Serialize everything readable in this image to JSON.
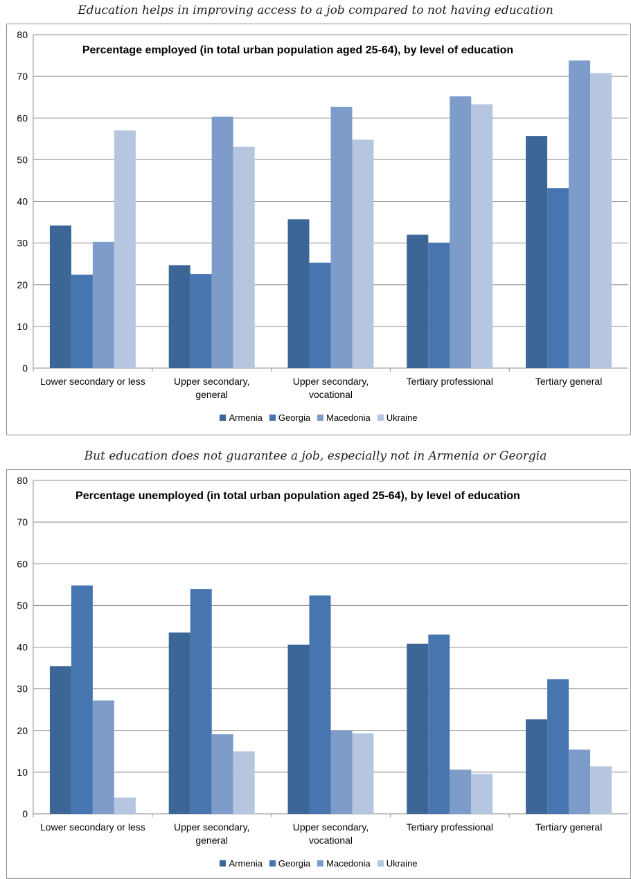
{
  "captions": {
    "top": "Education helps in improving access to a job compared to not having education",
    "bottom": "But education does not guarantee a job, especially not in Armenia or Georgia"
  },
  "chart_data": [
    {
      "type": "bar",
      "title": "Percentage employed (in total urban population aged 25-64), by level of education",
      "categories": [
        "Lower secondary or less",
        "Upper secondary, general",
        "Upper secondary, vocational",
        "Tertiary professional",
        "Tertiary general"
      ],
      "series": [
        {
          "name": "Armenia",
          "color": "#3c6696",
          "values": [
            34.2,
            24.7,
            35.7,
            32.0,
            55.7
          ]
        },
        {
          "name": "Georgia",
          "color": "#4675b0",
          "values": [
            22.4,
            22.6,
            25.3,
            30.1,
            43.2
          ]
        },
        {
          "name": "Macedonia",
          "color": "#7e9cc9",
          "values": [
            30.3,
            60.3,
            62.7,
            65.2,
            73.8
          ]
        },
        {
          "name": "Ukraine",
          "color": "#b6c5e0",
          "values": [
            57.0,
            53.1,
            54.8,
            63.3,
            70.8
          ]
        }
      ],
      "ylim": [
        0,
        80
      ],
      "yticks": [
        0,
        10,
        20,
        30,
        40,
        50,
        60,
        70,
        80
      ],
      "grid": true,
      "legend_position": "bottom"
    },
    {
      "type": "bar",
      "title": "Percentage unemployed (in total urban population aged 25-64), by level of education",
      "categories": [
        "Lower secondary or less",
        "Upper secondary, general",
        "Upper secondary, vocational",
        "Tertiary professional",
        "Tertiary general"
      ],
      "series": [
        {
          "name": "Armenia",
          "color": "#3c6696",
          "values": [
            35.4,
            43.5,
            40.6,
            40.8,
            22.7
          ]
        },
        {
          "name": "Georgia",
          "color": "#4675b0",
          "values": [
            54.8,
            53.9,
            52.4,
            43.0,
            32.3
          ]
        },
        {
          "name": "Macedonia",
          "color": "#7e9cc9",
          "values": [
            27.2,
            19.1,
            20.0,
            10.6,
            15.4
          ]
        },
        {
          "name": "Ukraine",
          "color": "#b6c5e0",
          "values": [
            3.9,
            15.0,
            19.3,
            9.6,
            11.4
          ]
        }
      ],
      "ylim": [
        0,
        80
      ],
      "yticks": [
        0,
        10,
        20,
        30,
        40,
        50,
        60,
        70,
        80
      ],
      "grid": true,
      "legend_position": "bottom"
    }
  ]
}
